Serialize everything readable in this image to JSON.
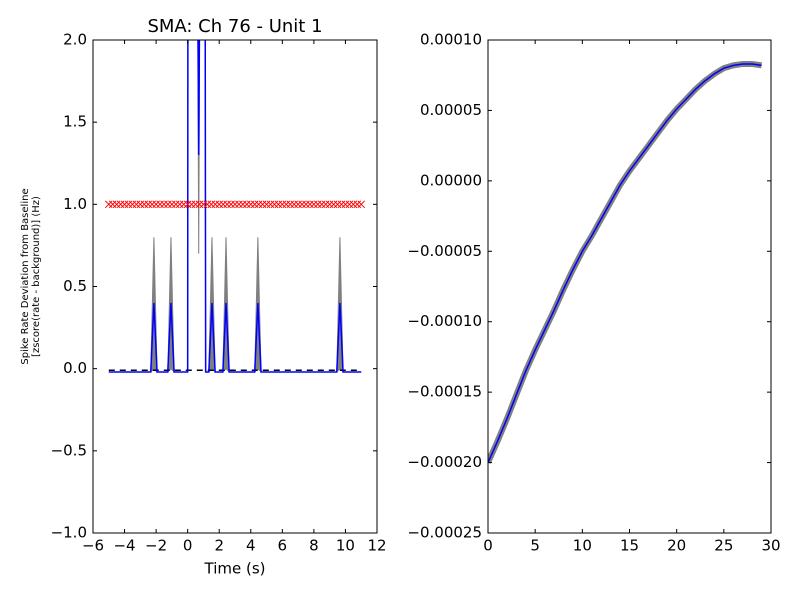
{
  "chart_data": [
    {
      "type": "line",
      "title": "SMA: Ch 76 - Unit 1",
      "xlabel": "Time (s)",
      "ylabel": [
        "Spike Rate Deviation from Baseline",
        "[zscore(rate - background)] (Hz)"
      ],
      "xlim": [
        -6,
        12
      ],
      "xticks": [
        {
          "value": -6,
          "label": "−6"
        },
        {
          "value": -4,
          "label": "−4"
        },
        {
          "value": -2,
          "label": "−2"
        },
        0,
        2,
        4,
        6,
        8,
        10,
        12
      ],
      "ylim": [
        -1,
        2
      ],
      "yticks": [
        {
          "value": -1,
          "label": "−1.0"
        },
        {
          "value": -0.5,
          "label": "−0.5"
        },
        {
          "value": 0,
          "label": "0.0"
        },
        {
          "value": 0.5,
          "label": "0.5"
        },
        {
          "value": 1,
          "label": "1.0"
        },
        {
          "value": 1.5,
          "label": "1.5"
        },
        {
          "value": 2,
          "label": "2.0"
        }
      ],
      "band": {
        "color": "#808080",
        "x": [
          -5,
          -2.34,
          -2.14,
          -1.94,
          -1.26,
          -1.06,
          -0.86,
          0,
          0.02,
          0.6,
          0.7,
          0.8,
          1.1,
          1.14,
          1.34,
          1.54,
          1.74,
          2.23,
          2.43,
          2.63,
          4.25,
          4.45,
          4.65,
          9.45,
          9.65,
          9.85,
          11
        ],
        "upper": [
          -0.02,
          -0.02,
          0.8,
          -0.02,
          -0.02,
          0.8,
          -0.02,
          -0.02,
          3,
          3,
          1.4,
          3,
          3,
          -0.02,
          -0.02,
          0.8,
          -0.02,
          -0.02,
          0.8,
          -0.02,
          -0.02,
          0.8,
          -0.02,
          -0.02,
          0.8,
          -0.02,
          -0.02
        ],
        "lower": [
          -0.02,
          -0.02,
          0,
          -0.02,
          -0.02,
          0,
          -0.02,
          -0.02,
          3,
          3,
          0.7,
          3,
          3,
          -0.02,
          -0.02,
          0,
          -0.02,
          -0.02,
          0,
          -0.02,
          -0.02,
          0,
          -0.02,
          -0.02,
          0,
          -0.02,
          -0.02
        ]
      },
      "series": [
        {
          "style": "dashed",
          "color": "#000000",
          "x": [
            -5,
            11
          ],
          "values": [
            -0.01,
            -0.01
          ]
        },
        {
          "style": "solid",
          "color": "#0000ff",
          "x": [
            -5,
            -2.34,
            -2.14,
            -1.94,
            -1.26,
            -1.06,
            -0.86,
            0,
            0.02,
            0.6,
            0.7,
            0.8,
            1.1,
            1.14,
            1.34,
            1.54,
            1.74,
            2.23,
            2.43,
            2.63,
            4.25,
            4.45,
            4.65,
            9.45,
            9.65,
            9.85,
            11
          ],
          "values": [
            -0.02,
            -0.02,
            0.4,
            -0.02,
            -0.02,
            0.4,
            -0.02,
            -0.02,
            3,
            3,
            1.3,
            3,
            3,
            -0.02,
            -0.02,
            0.4,
            -0.02,
            -0.02,
            0.4,
            -0.02,
            -0.02,
            0.4,
            -0.02,
            -0.02,
            0.4,
            -0.02,
            -0.02
          ]
        },
        {
          "style": "x-marker",
          "color": "#ff0000",
          "x": [
            -5,
            -4.75,
            -4.5,
            -4.25,
            -4,
            -3.75,
            -3.5,
            -3.25,
            -3,
            -2.75,
            -2.5,
            -2.25,
            -2,
            -1.75,
            -1.5,
            -1.25,
            -1,
            -0.75,
            -0.5,
            -0.25,
            0,
            0.25,
            0.5,
            0.75,
            1,
            1.25,
            1.5,
            1.75,
            2,
            2.25,
            2.5,
            2.75,
            3,
            3.25,
            3.5,
            3.75,
            4,
            4.25,
            4.5,
            4.75,
            5,
            5.25,
            5.5,
            5.75,
            6,
            6.25,
            6.5,
            6.75,
            7,
            7.25,
            7.5,
            7.75,
            8,
            8.25,
            8.5,
            8.75,
            9,
            9.25,
            9.5,
            9.75,
            10,
            10.25,
            10.5,
            10.75,
            11
          ],
          "values": [
            1,
            1,
            1,
            1,
            1,
            1,
            1,
            1,
            1,
            1,
            1,
            1,
            1,
            1,
            1,
            1,
            1,
            1,
            1,
            1,
            1,
            1,
            1,
            1,
            1,
            1,
            1,
            1,
            1,
            1,
            1,
            1,
            1,
            1,
            1,
            1,
            1,
            1,
            1,
            1,
            1,
            1,
            1,
            1,
            1,
            1,
            1,
            1,
            1,
            1,
            1,
            1,
            1,
            1,
            1,
            1,
            1,
            1,
            1,
            1,
            1,
            1,
            1,
            1,
            1
          ]
        }
      ]
    },
    {
      "type": "line",
      "xlim": [
        0,
        30
      ],
      "xticks": [
        0,
        5,
        10,
        15,
        20,
        25,
        30
      ],
      "ylim": [
        -0.00025,
        0.0001
      ],
      "yticks": [
        {
          "value": -0.00025,
          "label": "−0.00025"
        },
        {
          "value": -0.0002,
          "label": "−0.00020"
        },
        {
          "value": -0.00015,
          "label": "−0.00015"
        },
        {
          "value": -0.0001,
          "label": "−0.00010"
        },
        {
          "value": -5e-05,
          "label": "−0.00005"
        },
        {
          "value": 0,
          "label": "0.00000"
        },
        {
          "value": 5e-05,
          "label": "0.00005"
        },
        {
          "value": 0.0001,
          "label": "0.00010"
        }
      ],
      "series": [
        {
          "style": "banded",
          "color": "#0000ff",
          "band_color": "#808080",
          "x": [
            0,
            1,
            2,
            3,
            4,
            5,
            6,
            7,
            8,
            9,
            10,
            11,
            12,
            13,
            14,
            15,
            16,
            17,
            18,
            19,
            20,
            21,
            22,
            23,
            24,
            25,
            26,
            27,
            28,
            29
          ],
          "values": [
            -0.0002,
            -0.000185,
            -0.000169,
            -0.000152,
            -0.000135,
            -0.00012,
            -0.000106,
            -9.2e-05,
            -7.7e-05,
            -6.3e-05,
            -5e-05,
            -3.9e-05,
            -2.7e-05,
            -1.5e-05,
            -3e-06,
            7e-06,
            1.6e-05,
            2.5e-05,
            3.4e-05,
            4.3e-05,
            5.1e-05,
            5.8e-05,
            6.5e-05,
            7.1e-05,
            7.6e-05,
            8e-05,
            8.2e-05,
            8.3e-05,
            8.3e-05,
            8.2e-05
          ]
        }
      ]
    }
  ]
}
